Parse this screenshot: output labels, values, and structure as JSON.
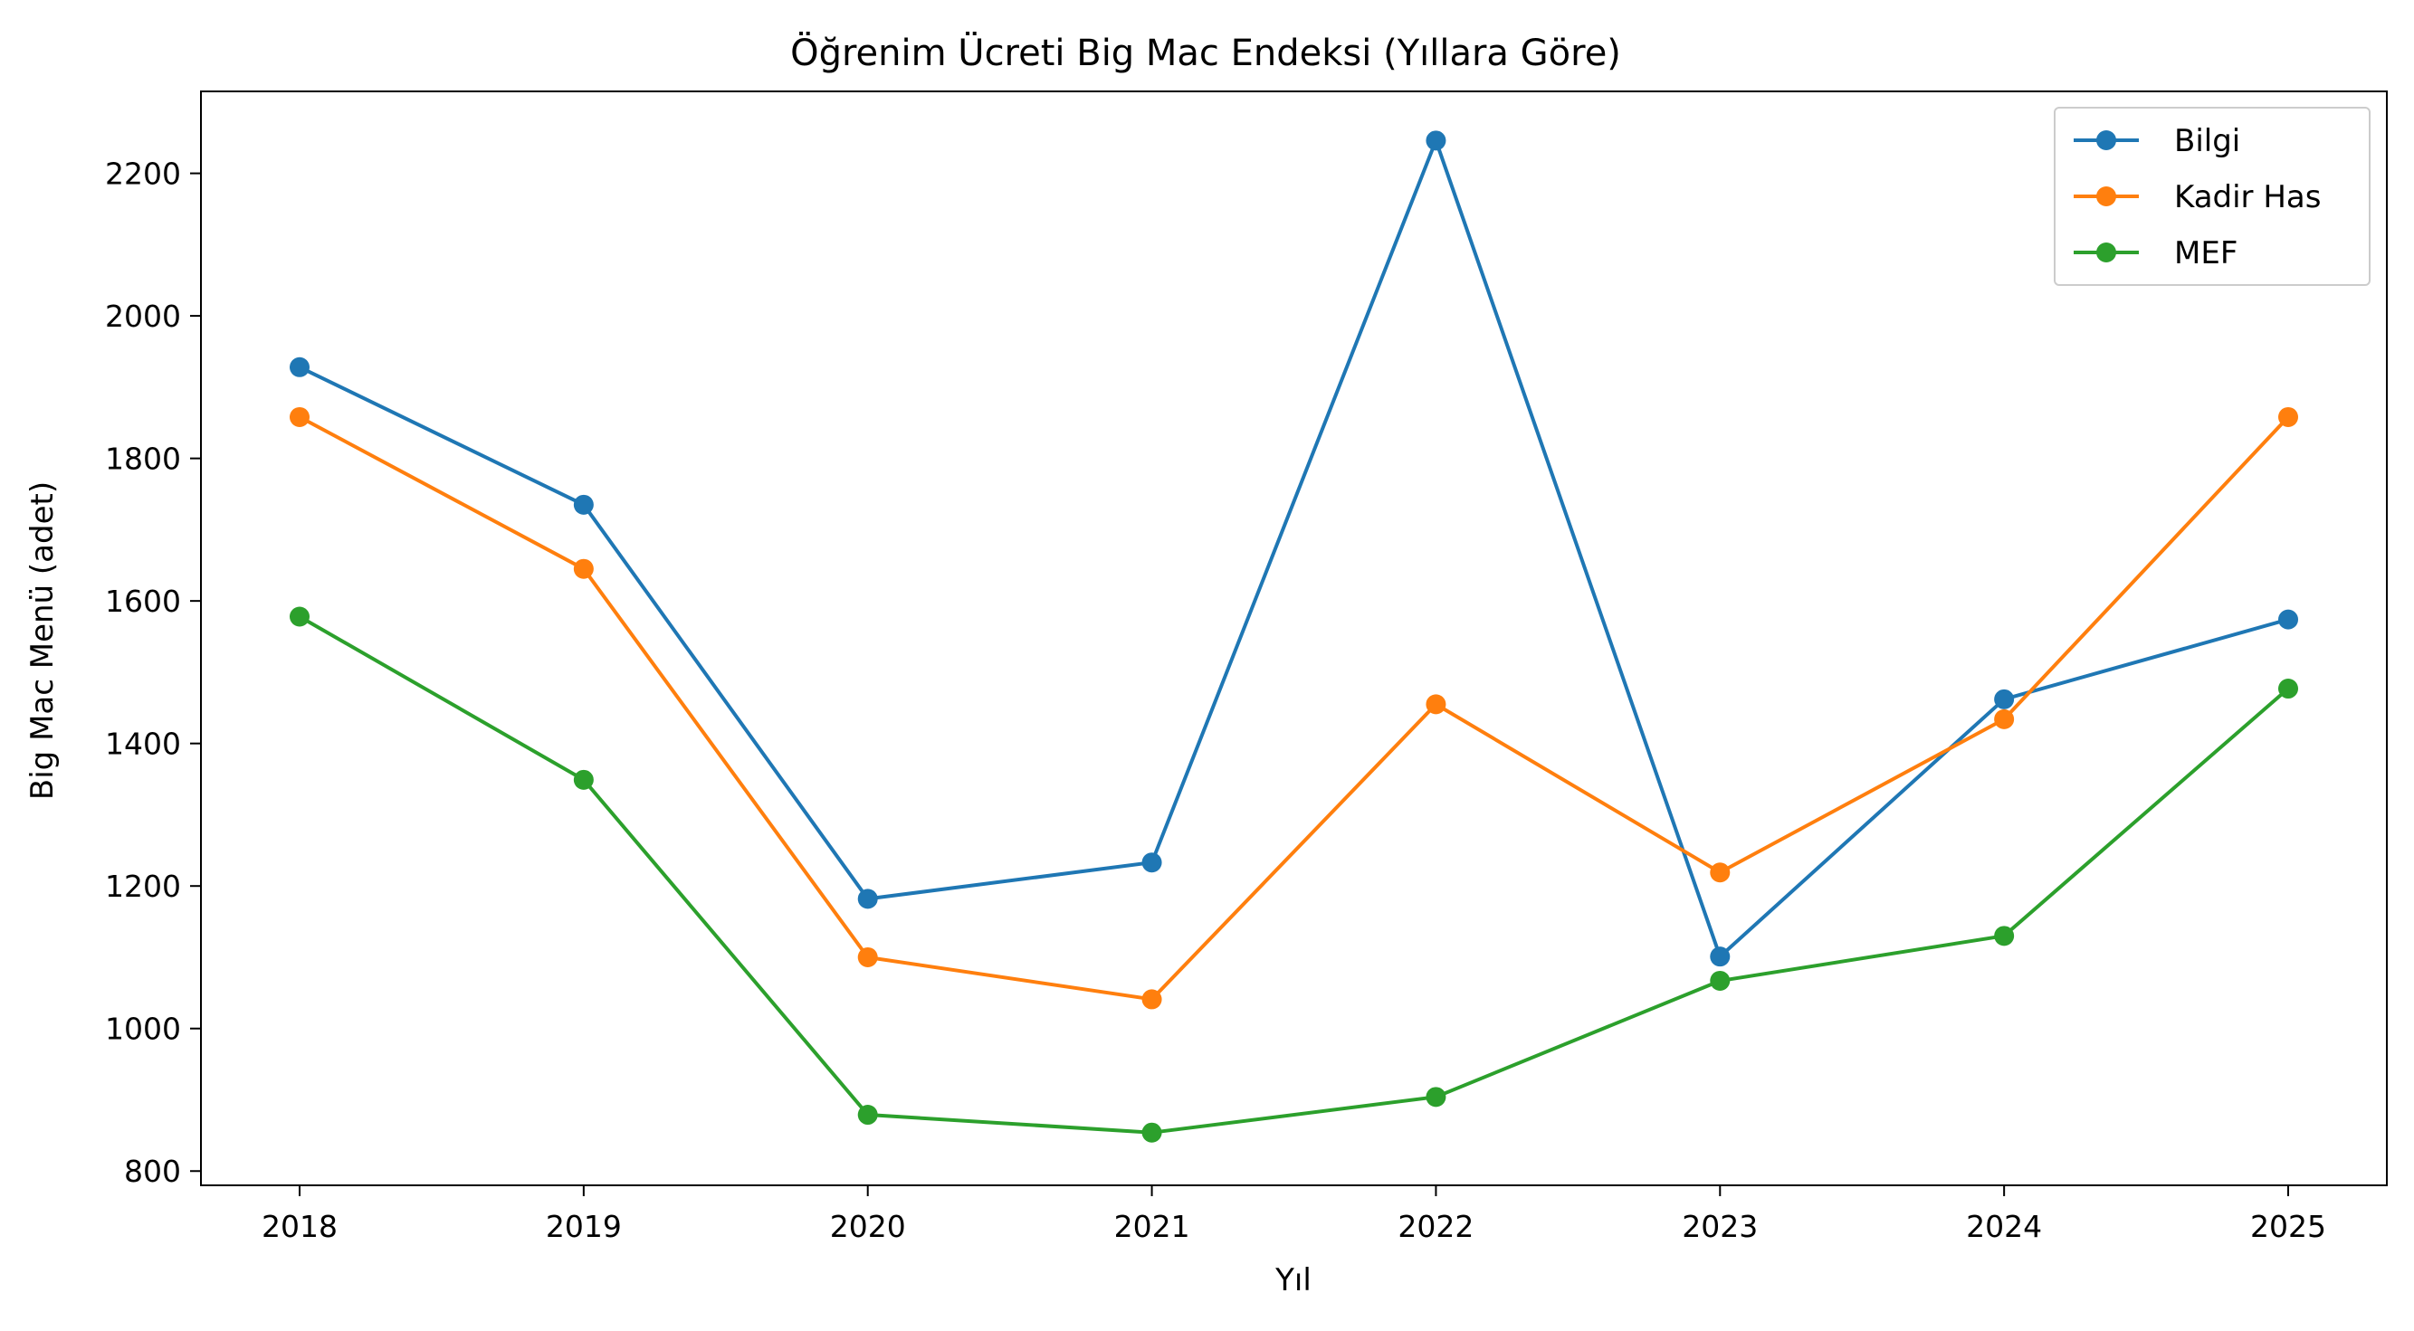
{
  "chart_data": {
    "type": "line",
    "title": "Öğrenim Ücreti Big Mac Endeksi (Yıllara Göre)",
    "xlabel": "Yıl",
    "ylabel": "Big Mac Menü (adet)",
    "categories": [
      "2018",
      "2019",
      "2020",
      "2021",
      "2022",
      "2023",
      "2024",
      "2025"
    ],
    "yticks": [
      800,
      1000,
      1200,
      1400,
      1600,
      1800,
      2000,
      2200
    ],
    "ylim": [
      780,
      2315
    ],
    "grid": false,
    "legend_position": "top-right",
    "series": [
      {
        "name": "Bilgi",
        "color": "#1f77b4",
        "values": [
          1928,
          1735,
          1182,
          1233,
          2246,
          1101,
          1462,
          1574
        ]
      },
      {
        "name": "Kadir Has",
        "color": "#ff7f0e",
        "values": [
          1858,
          1645,
          1100,
          1041,
          1455,
          1219,
          1434,
          1858
        ]
      },
      {
        "name": "MEF",
        "color": "#2ca02c",
        "values": [
          1578,
          1349,
          879,
          854,
          904,
          1067,
          1130,
          1477
        ]
      }
    ]
  }
}
